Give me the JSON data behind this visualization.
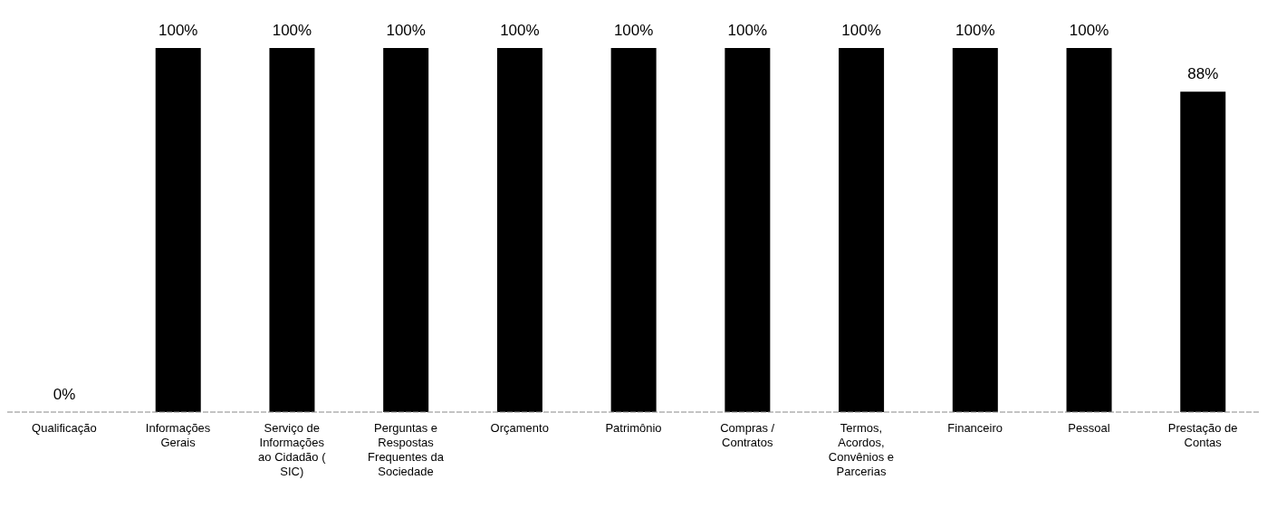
{
  "chart_data": {
    "type": "bar",
    "categories": [
      "Qualificação",
      "Informações Gerais",
      "Serviço de Informações ao Cidadão ( SIC)",
      "Perguntas e Respostas Frequentes da Sociedade",
      "Orçamento",
      "Patrimônio",
      "Compras / Contratos",
      "Termos, Acordos, Convênios e Parcerias",
      "Financeiro",
      "Pessoal",
      "Prestação de Contas"
    ],
    "values": [
      0,
      100,
      100,
      100,
      100,
      100,
      100,
      100,
      100,
      100,
      88
    ],
    "value_labels": [
      "0%",
      "100%",
      "100%",
      "100%",
      "100%",
      "100%",
      "100%",
      "100%",
      "100%",
      "100%",
      "88%"
    ],
    "color": "#000000",
    "grid": false,
    "legend": false
  }
}
